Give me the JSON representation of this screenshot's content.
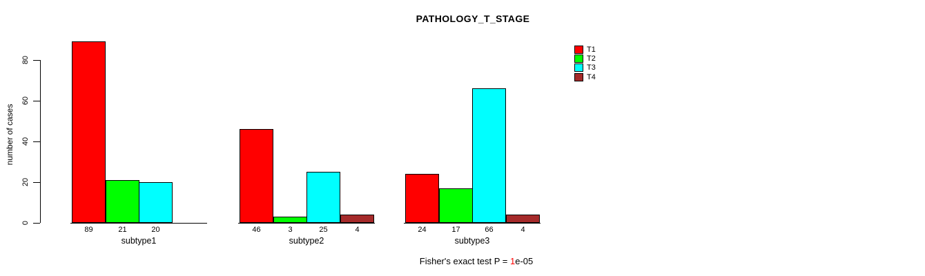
{
  "title": "PATHOLOGY_T_STAGE",
  "ylabel": "number of cases",
  "footer": {
    "prefix": "Fisher's exact test P = ",
    "value": "1",
    "suffix": "e-05",
    "value_color": "#ff0000"
  },
  "chart_data": {
    "type": "bar",
    "title": "PATHOLOGY_T_STAGE",
    "xlabel": "",
    "ylabel": "number of cases",
    "ylim": [
      0,
      89
    ],
    "yticks": [
      0,
      20,
      40,
      60,
      80
    ],
    "categories": [
      "subtype1",
      "subtype2",
      "subtype3"
    ],
    "series": [
      {
        "name": "T1",
        "color": "#ff0000",
        "values": [
          89,
          46,
          24
        ]
      },
      {
        "name": "T2",
        "color": "#00ff00",
        "values": [
          21,
          3,
          17
        ]
      },
      {
        "name": "T3",
        "color": "#00ffff",
        "values": [
          20,
          25,
          66
        ]
      },
      {
        "name": "T4",
        "color": "#a52a2a",
        "values": [
          0,
          4,
          4
        ]
      }
    ],
    "bar_value_labels_shown": true,
    "zero_value_labels_hidden": true,
    "annotation": "Fisher's exact test P = 1e-05",
    "legend_position": "top-right",
    "grid": false,
    "background": "#ffffff",
    "axis_color": "#000000"
  }
}
